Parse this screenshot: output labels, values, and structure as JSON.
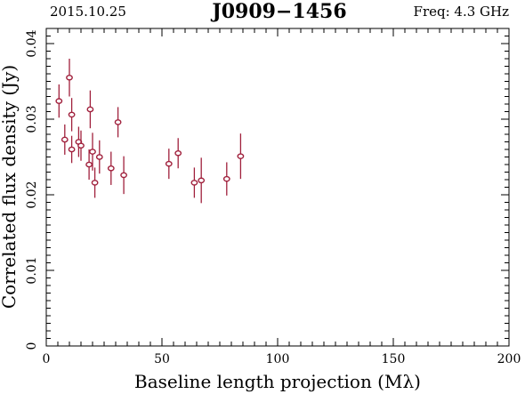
{
  "header": {
    "date": "2015.10.25",
    "source": "J0909−1456",
    "freq": "Freq: 4.3 GHz"
  },
  "colors": {
    "marker": "#a0203c",
    "axis": "#000000",
    "freq_text": "#a0203c"
  },
  "chart_data": {
    "type": "scatter",
    "xlabel": "Baseline length projection (Mλ)",
    "ylabel": "Correlated flux density (Jy)",
    "xlim": [
      0,
      200
    ],
    "ylim": [
      0,
      0.042
    ],
    "xticks": [
      0,
      50,
      100,
      150,
      200
    ],
    "xtick_labels": [
      "0",
      "50",
      "100",
      "150",
      "200"
    ],
    "yticks": [
      0,
      0.01,
      0.02,
      0.03,
      0.04
    ],
    "ytick_labels": [
      "0",
      "0.01",
      "0.02",
      "0.03",
      "0.04"
    ],
    "grid": false,
    "series": [
      {
        "marker": "open-circle",
        "errorbars": "vertical",
        "points": [
          {
            "x": 5.5,
            "y": 0.0324,
            "err": 0.0022
          },
          {
            "x": 8.0,
            "y": 0.0273,
            "err": 0.002
          },
          {
            "x": 10.0,
            "y": 0.0355,
            "err": 0.0025
          },
          {
            "x": 11.0,
            "y": 0.0306,
            "err": 0.0022
          },
          {
            "x": 11.0,
            "y": 0.026,
            "err": 0.0018
          },
          {
            "x": 14.0,
            "y": 0.027,
            "err": 0.002
          },
          {
            "x": 15.0,
            "y": 0.0265,
            "err": 0.002
          },
          {
            "x": 18.5,
            "y": 0.024,
            "err": 0.002
          },
          {
            "x": 19.0,
            "y": 0.0313,
            "err": 0.0025
          },
          {
            "x": 20.0,
            "y": 0.0257,
            "err": 0.0025
          },
          {
            "x": 21.0,
            "y": 0.0216,
            "err": 0.002
          },
          {
            "x": 23.0,
            "y": 0.025,
            "err": 0.0022
          },
          {
            "x": 28.0,
            "y": 0.0235,
            "err": 0.0022
          },
          {
            "x": 31.0,
            "y": 0.0296,
            "err": 0.002
          },
          {
            "x": 33.5,
            "y": 0.0226,
            "err": 0.0025
          },
          {
            "x": 53.0,
            "y": 0.0241,
            "err": 0.002
          },
          {
            "x": 57.0,
            "y": 0.0255,
            "err": 0.002
          },
          {
            "x": 64.0,
            "y": 0.0216,
            "err": 0.002
          },
          {
            "x": 67.0,
            "y": 0.0219,
            "err": 0.003
          },
          {
            "x": 78.0,
            "y": 0.0221,
            "err": 0.0022
          },
          {
            "x": 84.0,
            "y": 0.0251,
            "err": 0.003
          }
        ]
      }
    ]
  }
}
